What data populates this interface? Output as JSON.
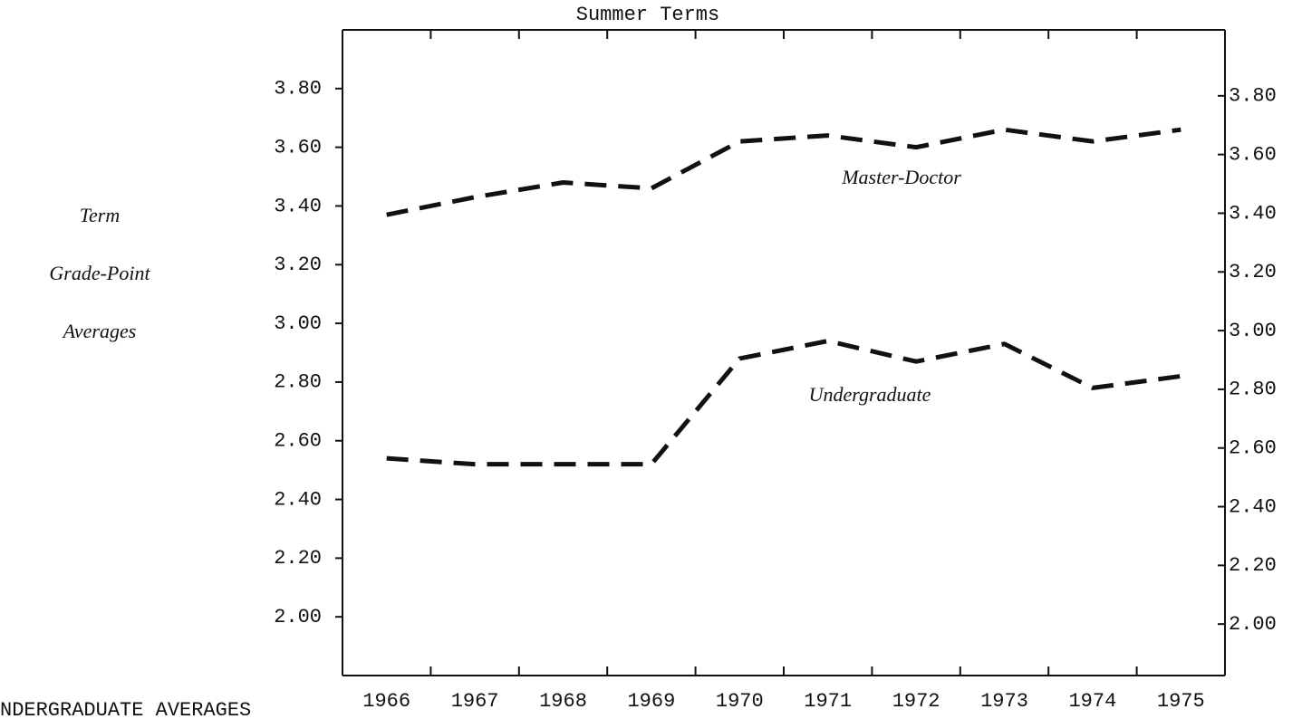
{
  "chart_data": {
    "type": "line",
    "title": "Summer Terms",
    "ylabel": [
      "Term",
      "Grade-Point",
      "Averages"
    ],
    "categories": [
      "1966",
      "1967",
      "1968",
      "1969",
      "1970",
      "1971",
      "1972",
      "1973",
      "1974",
      "1975"
    ],
    "series": [
      {
        "name": "Master-Doctor",
        "color": "#111111",
        "values": [
          3.37,
          3.43,
          3.48,
          3.46,
          3.62,
          3.64,
          3.6,
          3.66,
          3.62,
          3.66
        ]
      },
      {
        "name": "Undergraduate",
        "color": "#111111",
        "values": [
          2.54,
          2.52,
          2.52,
          2.52,
          2.88,
          2.94,
          2.87,
          2.93,
          2.78,
          2.82
        ]
      }
    ],
    "ylim": [
      1.8,
      4.0
    ],
    "yticks": [
      {
        "value": 2.0,
        "label": "2.00"
      },
      {
        "value": 2.2,
        "label": "2.20"
      },
      {
        "value": 2.4,
        "label": "2.40"
      },
      {
        "value": 2.6,
        "label": "2.60"
      },
      {
        "value": 2.8,
        "label": "2.80"
      },
      {
        "value": 3.0,
        "label": "3.00"
      },
      {
        "value": 3.2,
        "label": "3.20"
      },
      {
        "value": 3.4,
        "label": "3.40"
      },
      {
        "value": 3.6,
        "label": "3.60"
      },
      {
        "value": 3.8,
        "label": "3.80"
      }
    ],
    "y2lim": [
      1.8,
      4.0
    ],
    "y2ticks": [
      {
        "value": 2.0,
        "label": "2.00"
      },
      {
        "value": 2.2,
        "label": "2.20"
      },
      {
        "value": 2.4,
        "label": "2.40"
      },
      {
        "value": 2.6,
        "label": "2.60"
      },
      {
        "value": 2.8,
        "label": "2.80"
      },
      {
        "value": 3.0,
        "label": "3.00"
      },
      {
        "value": 3.2,
        "label": "3.20"
      },
      {
        "value": 3.4,
        "label": "3.40"
      },
      {
        "value": 3.6,
        "label": "3.60"
      },
      {
        "value": 3.8,
        "label": "3.80"
      }
    ],
    "grid": false,
    "footer": "NDERGRADUATE AVERAGES"
  }
}
